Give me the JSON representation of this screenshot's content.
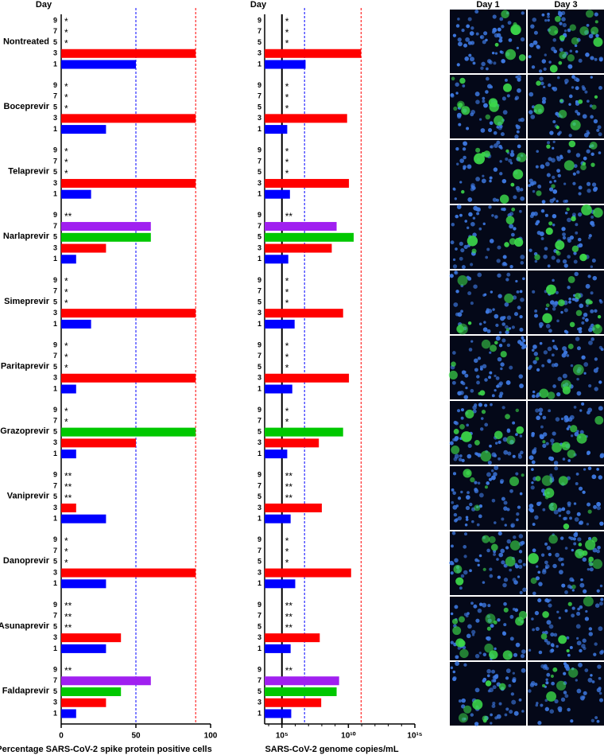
{
  "chart_data": [
    {
      "type": "bar",
      "orientation": "horizontal",
      "y_label": "Day",
      "x_label": "Percentage SARS-CoV-2 spike protein positive cells",
      "categories": [
        "Nontreated",
        "Boceprevir",
        "Telaprevir",
        "Narlaprevir",
        "Simeprevir",
        "Paritaprevir",
        "Grazoprevir",
        "Vaniprevir",
        "Danoprevir",
        "Asunaprevir",
        "Faldaprevir"
      ],
      "series": [
        {
          "name": "9",
          "values": [
            null,
            null,
            null,
            null,
            null,
            null,
            null,
            null,
            null,
            null,
            null
          ],
          "labels": [
            "*",
            "*",
            "*",
            "**",
            "*",
            "*",
            "*",
            "**",
            "*",
            "**",
            "**"
          ]
        },
        {
          "name": "7",
          "color": "#a020f0",
          "values": [
            null,
            null,
            null,
            60,
            null,
            null,
            null,
            null,
            null,
            null,
            60
          ],
          "labels": [
            "*",
            "*",
            "*",
            null,
            "*",
            "*",
            "*",
            "**",
            "*",
            "**",
            null
          ]
        },
        {
          "name": "5",
          "color": "#00c800",
          "values": [
            null,
            null,
            null,
            60,
            null,
            null,
            90,
            null,
            null,
            null,
            40
          ],
          "labels": [
            "*",
            "*",
            "*",
            null,
            "*",
            "*",
            null,
            "**",
            "*",
            "**",
            null
          ]
        },
        {
          "name": "3",
          "color": "#ff0000",
          "values": [
            90,
            90,
            90,
            30,
            90,
            90,
            50,
            10,
            90,
            40,
            30
          ],
          "labels": [
            null,
            null,
            null,
            null,
            null,
            null,
            null,
            null,
            null,
            null,
            null
          ]
        },
        {
          "name": "1",
          "color": "#0000ff",
          "values": [
            50,
            30,
            20,
            10,
            20,
            10,
            10,
            30,
            30,
            30,
            10
          ],
          "labels": [
            null,
            null,
            null,
            null,
            null,
            null,
            null,
            null,
            null,
            null,
            null
          ]
        }
      ],
      "xlim": [
        0,
        100
      ],
      "xticks": [
        0,
        50,
        100
      ],
      "reference_lines": [
        {
          "value": 50,
          "color": "#0000ff",
          "style": "dashed"
        },
        {
          "value": 90,
          "color": "#ff0000",
          "style": "dashed"
        }
      ]
    },
    {
      "type": "bar",
      "orientation": "horizontal",
      "y_label": "Day",
      "x_label": "SARS-CoV-2 genome copies/mL",
      "log_x": true,
      "series": [
        {
          "name": "9",
          "values": [
            null,
            null,
            null,
            null,
            null,
            null,
            null,
            null,
            null,
            null,
            null
          ],
          "labels": [
            "*",
            "*",
            "*",
            "**",
            "*",
            "*",
            "*",
            "**",
            "*",
            "**",
            "**"
          ]
        },
        {
          "name": "7",
          "color": "#a020f0",
          "values": [
            null,
            null,
            null,
            1300000000,
            null,
            null,
            null,
            null,
            null,
            null,
            2000000000
          ],
          "labels": [
            "*",
            "*",
            "*",
            null,
            "*",
            "*",
            "*",
            "**",
            "*",
            "**",
            null
          ]
        },
        {
          "name": "5",
          "color": "#00c800",
          "values": [
            null,
            null,
            null,
            25000000000,
            null,
            null,
            4000000000,
            null,
            null,
            null,
            1300000000
          ],
          "labels": [
            "*",
            "*",
            "*",
            null,
            "*",
            "*",
            null,
            "**",
            "*",
            "**",
            null
          ]
        },
        {
          "name": "3",
          "color": "#ff0000",
          "values": [
            90000000000,
            8000000000,
            11000000000,
            560000000,
            4000000000,
            11000000000,
            60000000,
            100000000,
            16000000000,
            70000000,
            90000000
          ],
          "labels": [
            null,
            null,
            null,
            null,
            null,
            null,
            null,
            null,
            null,
            null,
            null
          ]
        },
        {
          "name": "1",
          "color": "#0000ff",
          "values": [
            6000000,
            250000,
            400000,
            300000,
            900000,
            600000,
            250000,
            450000,
            1000000,
            450000,
            500000
          ],
          "labels": [
            null,
            null,
            null,
            null,
            null,
            null,
            null,
            null,
            null,
            null,
            null
          ]
        }
      ],
      "xlim": [
        5000,
        1000000000000000
      ],
      "xticks": [
        {
          "value": 100000,
          "label": "10⁵"
        },
        {
          "value": 10000000000,
          "label": "10¹⁰"
        },
        {
          "value": 1000000000000000,
          "label": "10¹⁵"
        }
      ],
      "reference_lines": [
        {
          "value": 100000,
          "color": "#000000",
          "style": "solid"
        },
        {
          "value": 5000000,
          "color": "#0000ff",
          "style": "dashed"
        },
        {
          "value": 90000000000,
          "color": "#ff0000",
          "style": "dashed"
        }
      ]
    }
  ],
  "images": {
    "columns": [
      "Day 1",
      "Day 3"
    ]
  }
}
